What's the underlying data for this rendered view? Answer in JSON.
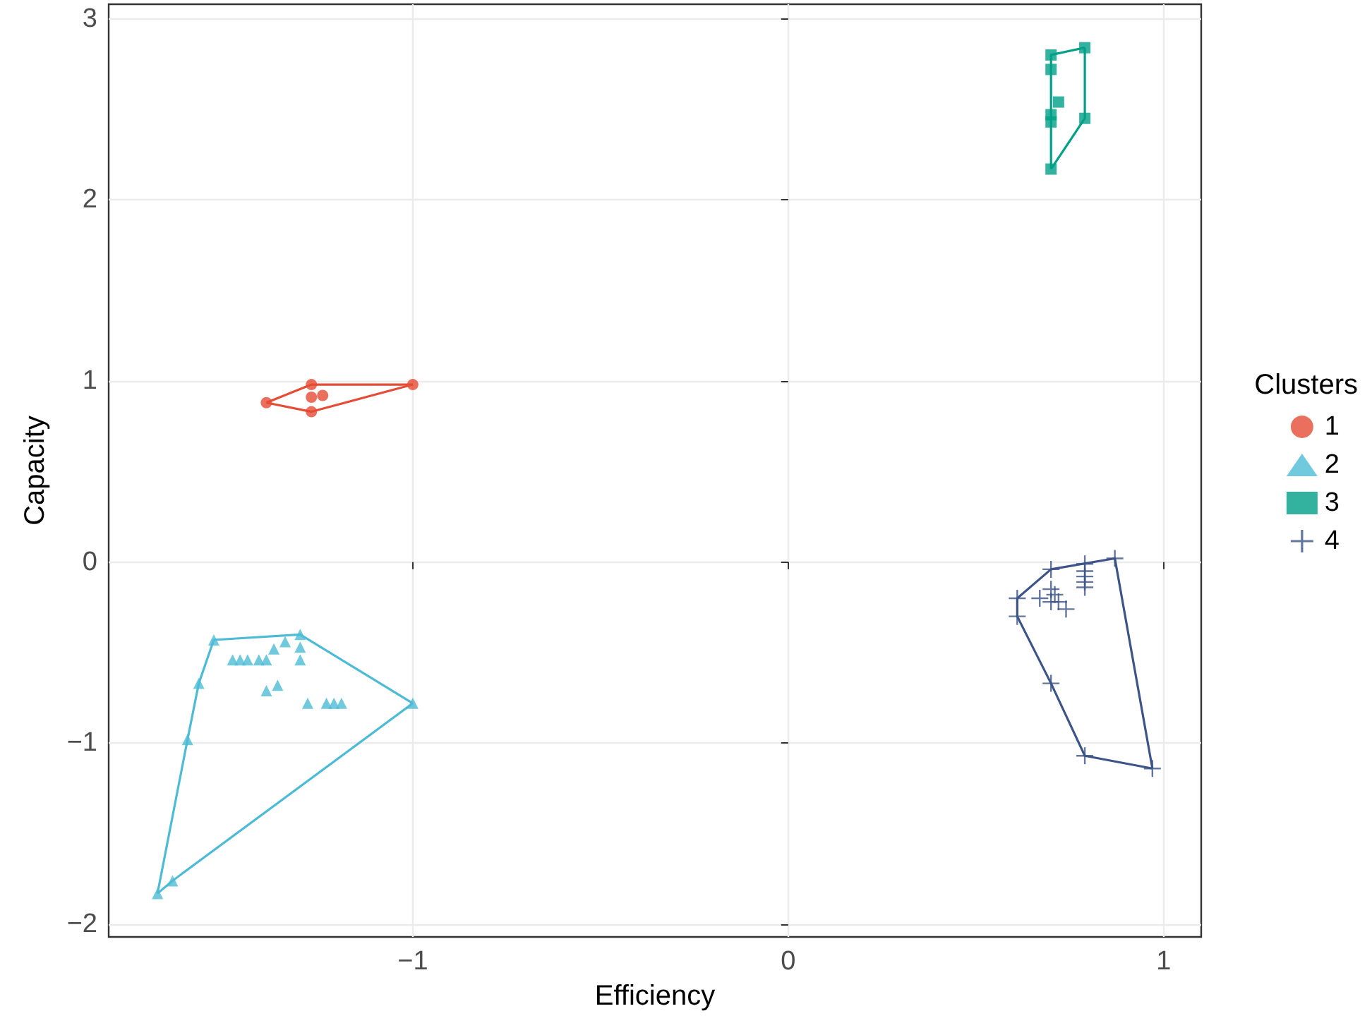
{
  "chart_data": {
    "type": "scatter",
    "xlabel": "Efficiency",
    "ylabel": "Capacity",
    "legend_title": "Clusters",
    "legend": "right",
    "grid": true,
    "xlim": [
      -1.81,
      1.1
    ],
    "ylim": [
      -2.07,
      3.08
    ],
    "xticks": [
      {
        "value": -1,
        "label": "−1"
      },
      0,
      1
    ],
    "yticks": [
      {
        "value": -2,
        "label": "−2"
      },
      {
        "value": -1,
        "label": "−1"
      },
      0,
      1,
      2,
      3
    ],
    "series": [
      {
        "name": "1",
        "color": "#e64b35",
        "marker": "circle",
        "x": [
          -1.39,
          -1.27,
          -1.27,
          -1.27,
          -1.0,
          -1.24
        ],
        "values": [
          0.88,
          0.98,
          0.91,
          0.83,
          0.98,
          0.92
        ]
      },
      {
        "name": "2",
        "color": "#4dbbd5",
        "marker": "triangle",
        "x": [
          -1.68,
          -1.64,
          -1.0,
          -1.3,
          -1.53,
          -1.57,
          -1.6,
          -1.48,
          -1.46,
          -1.44,
          -1.41,
          -1.39,
          -1.37,
          -1.34,
          -1.3,
          -1.3,
          -1.36,
          -1.39,
          -1.28,
          -1.23,
          -1.21,
          -1.19
        ],
        "values": [
          -1.83,
          -1.76,
          -0.78,
          -0.4,
          -0.43,
          -0.67,
          -0.98,
          -0.54,
          -0.54,
          -0.54,
          -0.54,
          -0.54,
          -0.48,
          -0.44,
          -0.47,
          -0.54,
          -0.68,
          -0.71,
          -0.78,
          -0.78,
          -0.78,
          -0.78
        ]
      },
      {
        "name": "3",
        "color": "#00a087",
        "marker": "square",
        "x": [
          0.7,
          0.79,
          0.7,
          0.72,
          0.7,
          0.7,
          0.79,
          0.7
        ],
        "values": [
          2.8,
          2.84,
          2.72,
          2.54,
          2.47,
          2.43,
          2.45,
          2.17
        ]
      },
      {
        "name": "4",
        "color": "#3c5488",
        "marker": "cross",
        "x": [
          0.61,
          0.61,
          0.7,
          0.79,
          0.87,
          0.97,
          0.79,
          0.7,
          0.79,
          0.79,
          0.79,
          0.79,
          0.7,
          0.67,
          0.71,
          0.7,
          0.72,
          0.74
        ],
        "values": [
          -0.2,
          -0.3,
          -0.04,
          -0.01,
          0.02,
          -1.14,
          -1.07,
          -0.67,
          -0.05,
          -0.08,
          -0.11,
          -0.14,
          -0.15,
          -0.2,
          -0.18,
          -0.22,
          -0.22,
          -0.26
        ]
      },
      {
        "type": "line",
        "color": "#e64b35",
        "marker": "none",
        "x": [
          -1.39,
          -1.27,
          -1.0
        ],
        "values": [
          0.88,
          0.98,
          0.98
        ]
      },
      {
        "type": "line",
        "color": "#e64b35",
        "marker": "none",
        "x": [
          -1.39,
          -1.27,
          -1.0
        ],
        "values": [
          0.88,
          0.83,
          0.98
        ]
      },
      {
        "type": "line",
        "color": "#4dbbd5",
        "marker": "none",
        "x": [
          -1.68,
          -1.64,
          -1.0
        ],
        "values": [
          -1.83,
          -1.76,
          -0.78
        ]
      },
      {
        "type": "line",
        "color": "#4dbbd5",
        "marker": "none",
        "x": [
          -1.68,
          -1.6,
          -1.57,
          -1.53,
          -1.3,
          -1.0
        ],
        "values": [
          -1.83,
          -0.98,
          -0.67,
          -0.43,
          -0.4,
          -0.78
        ]
      },
      {
        "type": "line",
        "color": "#00a087",
        "marker": "none",
        "x": [
          0.7,
          0.7,
          0.79
        ],
        "values": [
          2.17,
          2.8,
          2.84
        ]
      },
      {
        "type": "line",
        "color": "#00a087",
        "marker": "none",
        "x": [
          0.7,
          0.79,
          0.79
        ],
        "values": [
          2.17,
          2.45,
          2.84
        ]
      },
      {
        "type": "line",
        "color": "#3c5488",
        "marker": "none",
        "x": [
          0.61,
          0.61,
          0.7,
          0.87,
          0.97
        ],
        "values": [
          -0.3,
          -0.2,
          -0.04,
          0.02,
          -1.14
        ]
      },
      {
        "type": "line",
        "color": "#3c5488",
        "marker": "none",
        "x": [
          0.61,
          0.7,
          0.79,
          0.97
        ],
        "values": [
          -0.3,
          -0.67,
          -1.07,
          -1.14
        ]
      }
    ]
  }
}
